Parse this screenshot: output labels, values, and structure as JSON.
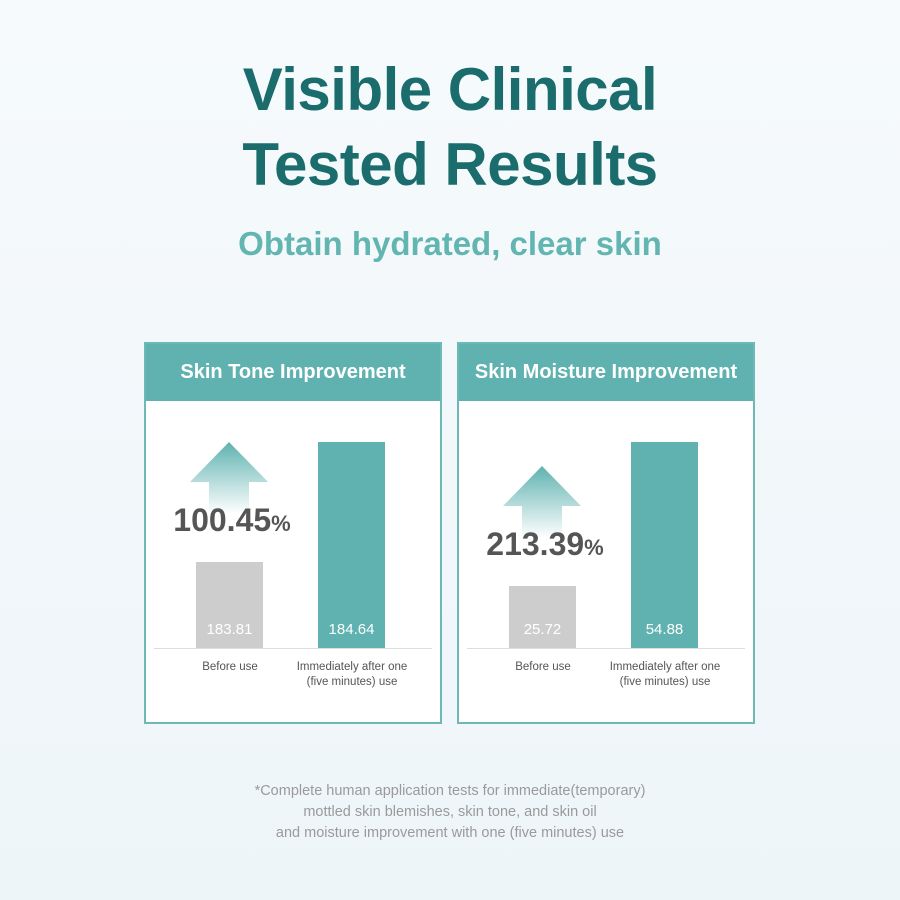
{
  "header": {
    "title_lines": [
      "Visible Clinical",
      "Tested Results"
    ],
    "subtitle": "Obtain hydrated, clear skin"
  },
  "chart_data": [
    {
      "type": "bar",
      "title": "Skin Tone Improvement",
      "categories": [
        "Before use",
        "Immediately after one (five minutes) use"
      ],
      "values": [
        183.81,
        184.64
      ],
      "colors": [
        "#cdcdcd",
        "#5fb2b0"
      ],
      "ylim": [
        183.22,
        184.64
      ],
      "annotation": "100.45",
      "annotation_unit": "%"
    },
    {
      "type": "bar",
      "title": "Skin Moisture Improvement",
      "categories": [
        "Before use",
        "Immediately after one (five minutes) use"
      ],
      "values": [
        25.72,
        54.88
      ],
      "colors": [
        "#cdcdcd",
        "#5fb2b0"
      ],
      "ylim": [
        13.08,
        54.88
      ],
      "annotation": "213.39",
      "annotation_unit": "%"
    }
  ],
  "footnote": [
    "*Complete human application tests for immediate(temporary)",
    "mottled skin blemishes, skin tone, and skin oil",
    "and moisture improvement with one (five minutes) use"
  ]
}
